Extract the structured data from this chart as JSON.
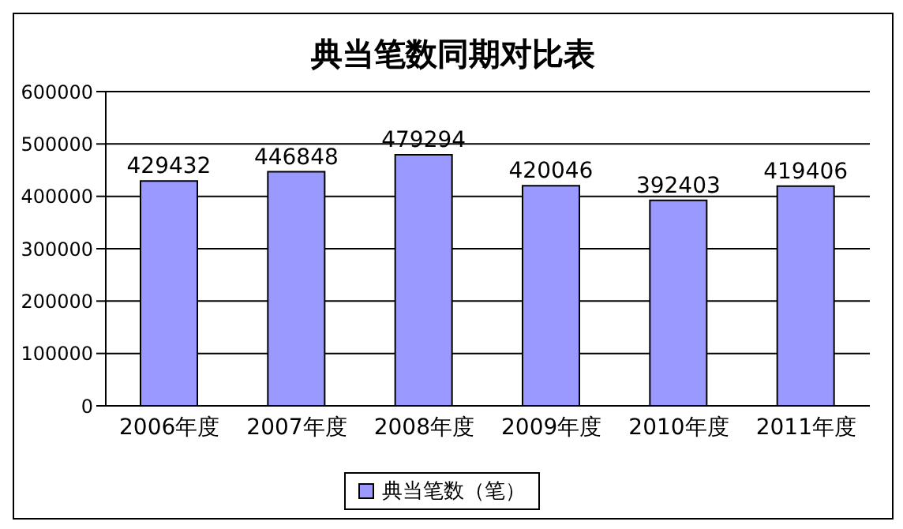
{
  "chart_data": {
    "type": "bar",
    "title": "典当笔数同期对比表",
    "categories": [
      "2006年度",
      "2007年度",
      "2008年度",
      "2009年度",
      "2010年度",
      "2011年度"
    ],
    "series": [
      {
        "name": "典当笔数（笔）",
        "color": "#9999ff",
        "values": [
          429432,
          446848,
          479294,
          420046,
          392403,
          419406
        ]
      }
    ],
    "ylim": [
      0,
      600000
    ],
    "yticks": [
      0,
      100000,
      200000,
      300000,
      400000,
      500000,
      600000
    ],
    "grid": "y",
    "legend": "bottom",
    "data_labels": true
  }
}
